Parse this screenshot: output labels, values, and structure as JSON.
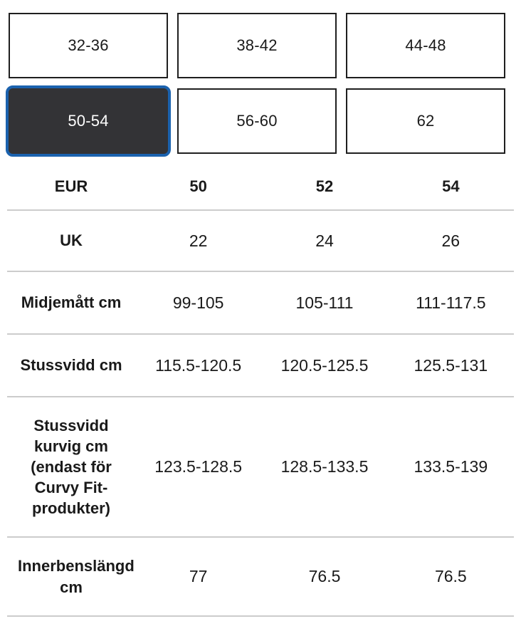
{
  "size_selector": {
    "buttons": [
      {
        "label": "32-36",
        "selected": false
      },
      {
        "label": "38-42",
        "selected": false
      },
      {
        "label": "44-48",
        "selected": false
      },
      {
        "label": "50-54",
        "selected": true
      },
      {
        "label": "56-60",
        "selected": false
      },
      {
        "label": "62",
        "selected": false
      }
    ]
  },
  "size_table": {
    "rows": [
      {
        "label": "EUR",
        "values": [
          "50",
          "52",
          "54"
        ]
      },
      {
        "label": "UK",
        "values": [
          "22",
          "24",
          "26"
        ]
      },
      {
        "label": "Midjemått cm",
        "values": [
          "99-105",
          "105-111",
          "111-117.5"
        ]
      },
      {
        "label": "Stussvidd cm",
        "values": [
          "115.5-120.5",
          "120.5-125.5",
          "125.5-131"
        ]
      },
      {
        "label": "Stussvidd kurvig cm (endast för Curvy Fit-produkter)",
        "values": [
          "123.5-128.5",
          "128.5-133.5",
          "133.5-139"
        ]
      },
      {
        "label": "Innerbenslängd cm",
        "values": [
          "77",
          "76.5",
          "76.5"
        ]
      }
    ]
  },
  "colors": {
    "selected_button_bg": "#333336",
    "selected_button_border": "#1b62ae",
    "button_border": "#1f1f1f",
    "divider": "#cccccc",
    "text": "#1a1a1a"
  }
}
